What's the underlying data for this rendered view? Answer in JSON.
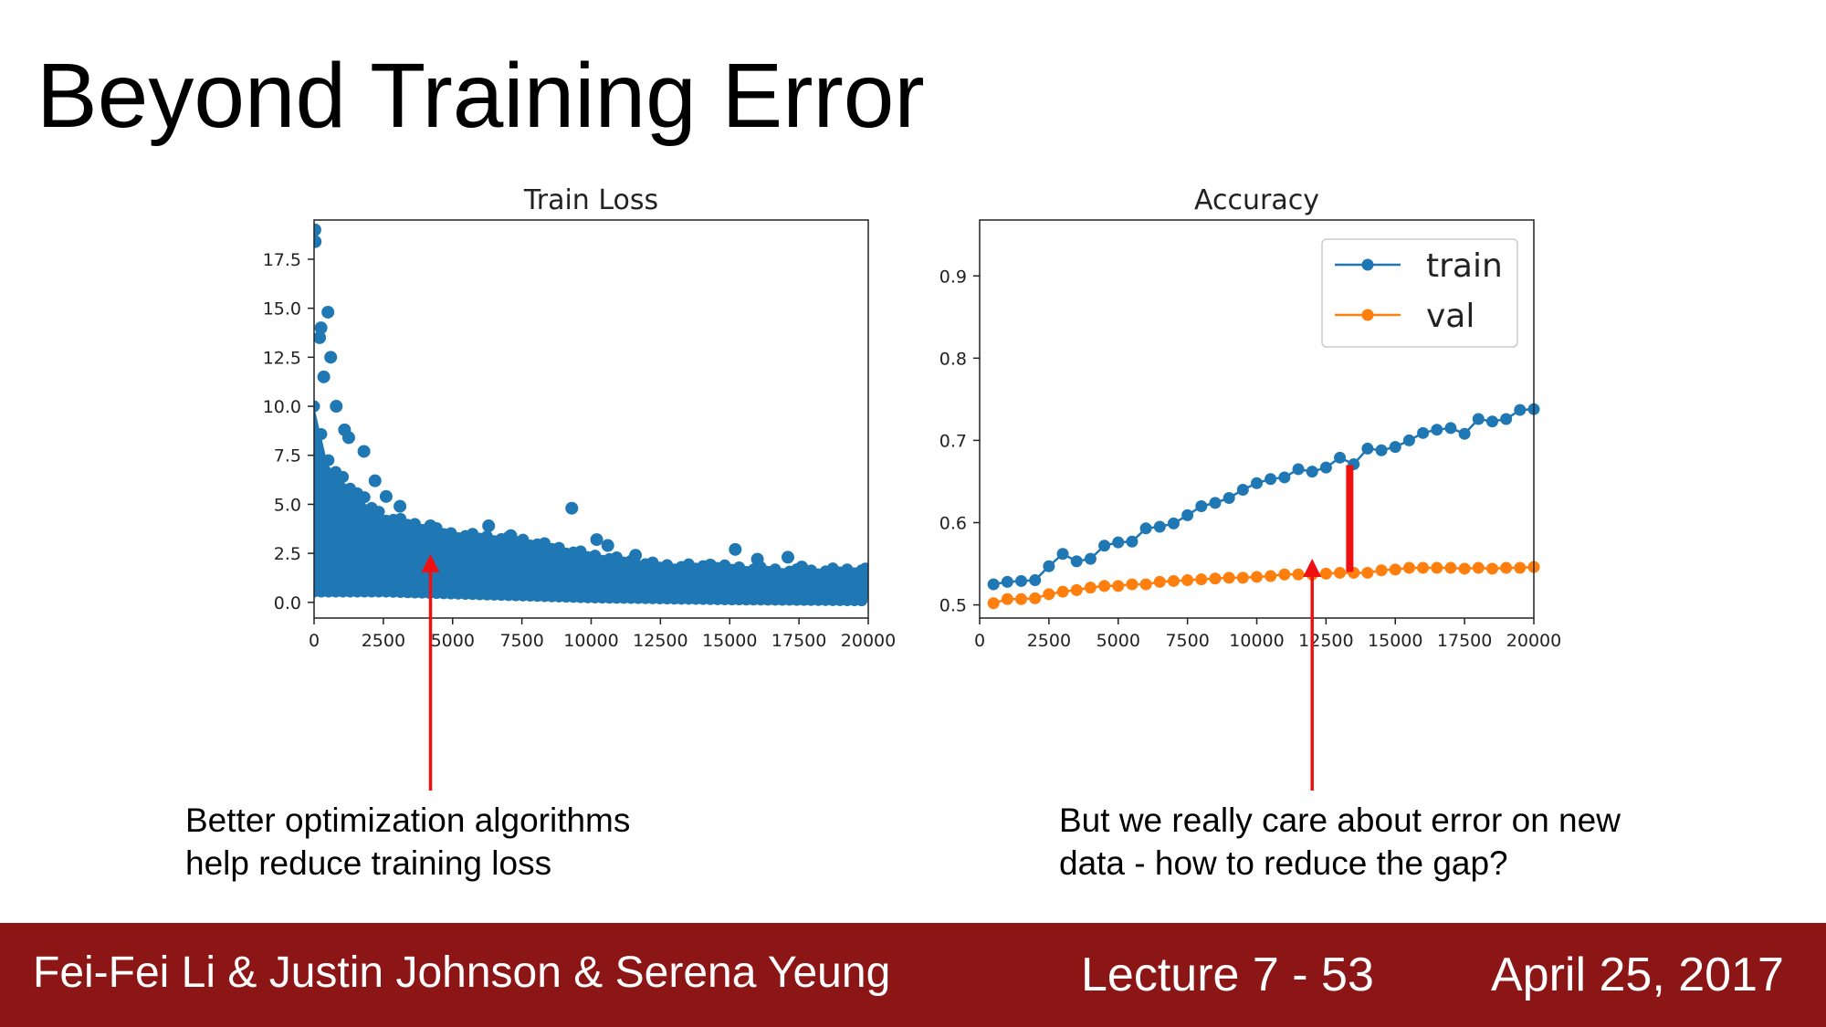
{
  "slide": {
    "title": "Beyond Training Error",
    "caption_left": [
      "Better optimization algorithms",
      "help reduce training loss"
    ],
    "caption_right": [
      "But we really care about error on new",
      "data - how to reduce the gap?"
    ]
  },
  "footer": {
    "authors": "Fei-Fei Li & Justin Johnson & Serena Yeung",
    "lecture": "Lecture 7 - 53",
    "date": "April 25, 2017",
    "background_color": "#8c1515"
  },
  "annotations": {
    "arrow_color": "#ee1111",
    "gap_marker": {
      "x": 12500,
      "from": 0.54,
      "to": 0.67
    }
  },
  "chart_data": [
    {
      "type": "scatter",
      "title": "Train Loss",
      "xlabel": "",
      "ylabel": "",
      "xlim": [
        0,
        20000
      ],
      "ylim": [
        -0.8,
        19.5
      ],
      "x_ticks": [
        0,
        2500,
        5000,
        7500,
        10000,
        12500,
        15000,
        17500,
        20000
      ],
      "x_tick_labels": [
        "0",
        "2500",
        "5000",
        "7500",
        "10000",
        "12500",
        "15000",
        "17500",
        "20000"
      ],
      "y_ticks": [
        0,
        2.5,
        5,
        7.5,
        10,
        12.5,
        15,
        17.5
      ],
      "y_tick_labels": [
        "0.0",
        "2.5",
        "5.0",
        "7.5",
        "10.0",
        "12.5",
        "15.0",
        "17.5"
      ],
      "color": "#1f77b4",
      "grid": false,
      "band_lower": [
        [
          0,
          0.6
        ],
        [
          2500,
          0.6
        ],
        [
          5000,
          0.5
        ],
        [
          10000,
          0.3
        ],
        [
          15000,
          0.2
        ],
        [
          20000,
          0.15
        ]
      ],
      "band_upper": [
        [
          0,
          10.0
        ],
        [
          500,
          7.0
        ],
        [
          1500,
          5.5
        ],
        [
          2500,
          4.2
        ],
        [
          5000,
          3.3
        ],
        [
          7500,
          3.0
        ],
        [
          10000,
          2.2
        ],
        [
          12500,
          1.7
        ],
        [
          15000,
          1.6
        ],
        [
          17500,
          1.4
        ],
        [
          20000,
          1.5
        ]
      ],
      "outliers": [
        [
          30,
          19.0
        ],
        [
          40,
          18.4
        ],
        [
          200,
          13.5
        ],
        [
          250,
          14.0
        ],
        [
          500,
          14.8
        ],
        [
          600,
          12.5
        ],
        [
          350,
          11.5
        ],
        [
          800,
          10.0
        ],
        [
          1100,
          8.8
        ],
        [
          1250,
          8.4
        ],
        [
          1800,
          7.7
        ],
        [
          2200,
          6.2
        ],
        [
          2600,
          5.4
        ],
        [
          3100,
          4.9
        ],
        [
          4200,
          3.9
        ],
        [
          6300,
          3.9
        ],
        [
          7100,
          3.4
        ],
        [
          9300,
          4.8
        ],
        [
          10200,
          3.2
        ],
        [
          10600,
          2.9
        ],
        [
          11600,
          2.4
        ],
        [
          14300,
          1.9
        ],
        [
          15200,
          2.7
        ],
        [
          16000,
          2.2
        ],
        [
          17100,
          2.3
        ],
        [
          17600,
          1.8
        ],
        [
          18800,
          1.2
        ],
        [
          19900,
          1.7
        ]
      ]
    },
    {
      "type": "line",
      "title": "Accuracy",
      "xlabel": "",
      "ylabel": "",
      "xlim": [
        0,
        20000
      ],
      "ylim": [
        0.484,
        0.968
      ],
      "x_ticks": [
        0,
        2500,
        5000,
        7500,
        10000,
        12500,
        15000,
        17500,
        20000
      ],
      "x_tick_labels": [
        "0",
        "2500",
        "5000",
        "7500",
        "10000",
        "12500",
        "15000",
        "17500",
        "20000"
      ],
      "y_ticks": [
        0.5,
        0.6,
        0.7,
        0.8,
        0.9
      ],
      "y_tick_labels": [
        "0.5",
        "0.6",
        "0.7",
        "0.8",
        "0.9"
      ],
      "legend_position": "top-right",
      "grid": false,
      "x": [
        500,
        1000,
        1500,
        2000,
        2500,
        3000,
        3500,
        4000,
        4500,
        5000,
        5500,
        6000,
        6500,
        7000,
        7500,
        8000,
        8500,
        9000,
        9500,
        10000,
        10500,
        11000,
        11500,
        12000,
        12500,
        13000,
        13500,
        14000,
        14500,
        15000,
        15500,
        16000,
        16500,
        17000,
        17500,
        18000,
        18500,
        19000,
        19500,
        20000
      ],
      "series": [
        {
          "name": "train",
          "color": "#1f77b4",
          "values": [
            0.525,
            0.528,
            0.529,
            0.53,
            0.547,
            0.562,
            0.553,
            0.556,
            0.572,
            0.576,
            0.577,
            0.593,
            0.595,
            0.599,
            0.609,
            0.62,
            0.624,
            0.63,
            0.64,
            0.648,
            0.653,
            0.655,
            0.665,
            0.662,
            0.667,
            0.679,
            0.671,
            0.69,
            0.688,
            0.692,
            0.7,
            0.709,
            0.713,
            0.715,
            0.708,
            0.726,
            0.723,
            0.726,
            0.737,
            0.738
          ]
        },
        {
          "name": "val",
          "color": "#ff7f0e",
          "values": [
            0.502,
            0.507,
            0.507,
            0.508,
            0.513,
            0.516,
            0.518,
            0.521,
            0.523,
            0.523,
            0.525,
            0.525,
            0.528,
            0.529,
            0.53,
            0.531,
            0.532,
            0.533,
            0.533,
            0.534,
            0.535,
            0.537,
            0.537,
            0.537,
            0.538,
            0.539,
            0.539,
            0.539,
            0.542,
            0.543,
            0.545,
            0.545,
            0.545,
            0.545,
            0.544,
            0.545,
            0.544,
            0.545,
            0.545,
            0.546
          ]
        }
      ]
    }
  ]
}
